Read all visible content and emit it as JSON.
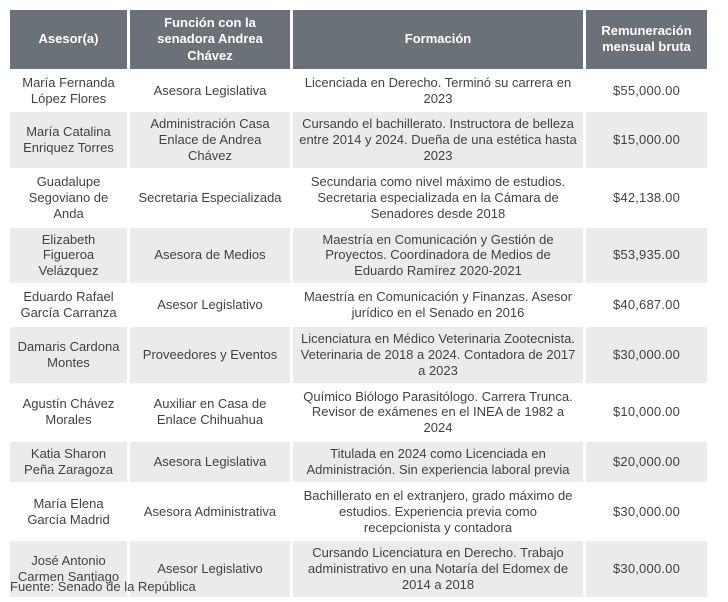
{
  "chart_data": {
    "type": "table",
    "title": "",
    "columns": [
      "Asesor(a)",
      "Función con la senadora Andrea Chávez",
      "Formación",
      "Remuneración mensual bruta"
    ],
    "rows": [
      {
        "asesor": "María Fernanda López Flores",
        "funcion": "Asesora Legislativa",
        "formacion": "Licenciada en Derecho. Terminó su carrera en 2023",
        "remuneracion": "$55,000.00"
      },
      {
        "asesor": "María Catalina Enriquez Torres",
        "funcion": "Administración Casa Enlace de Andrea Chávez",
        "formacion": "Cursando el bachillerato. Instructora de belleza entre 2014 y 2024. Dueña de una estética hasta 2023",
        "remuneracion": "$15,000.00"
      },
      {
        "asesor": "Guadalupe Segoviano de Anda",
        "funcion": "Secretaria Especializada",
        "formacion": "Secundaria como nivel máximo de estudios. Secretaria especializada en la Cámara de Senadores desde 2018",
        "remuneracion": "$42,138.00"
      },
      {
        "asesor": "Elizabeth Figueroa Velázquez",
        "funcion": "Asesora de Medios",
        "formacion": "Maestría en Comunicación y Gestión de Proyectos. Coordinadora de Medios de Eduardo Ramírez 2020-2021",
        "remuneracion": "$53,935.00"
      },
      {
        "asesor": "Eduardo Rafael García Carranza",
        "funcion": "Asesor Legislativo",
        "formacion": "Maestría en Comunicación y Finanzas. Asesor jurídico en el Senado en 2016",
        "remuneracion": "$40,687.00"
      },
      {
        "asesor": "Damaris Cardona Montes",
        "funcion": "Proveedores y Eventos",
        "formacion": "Licenciatura en Médico Veterinaria Zootecnista. Veterinaria de 2018 a 2024. Contadora de 2017 a 2023",
        "remuneracion": "$30,000.00"
      },
      {
        "asesor": "Agustín Chávez Morales",
        "funcion": "Auxiliar en Casa de Enlace Chihuahua",
        "formacion": "Químico Biólogo Parasitólogo. Carrera Trunca. Revisor de exámenes en el INEA de 1982 a 2024",
        "remuneracion": "$10,000.00"
      },
      {
        "asesor": "Katia Sharon Peña Zaragoza",
        "funcion": "Asesora Legislativa",
        "formacion": "Titulada en 2024 como Licenciada en Administración. Sin experiencia laboral previa",
        "remuneracion": "$20,000.00"
      },
      {
        "asesor": "María Elena García Madrid",
        "funcion": "Asesora Administrativa",
        "formacion": "Bachillerato en el extranjero, grado máximo de estudios. Experiencia previa como recepcionista y contadora",
        "remuneracion": "$30,000.00"
      },
      {
        "asesor": "José Antonio Carmen Santiago",
        "funcion": "Asesor Legislativo",
        "formacion": "Cursando Licenciatura en Derecho. Trabajo administrativo en una Notaría del Edomex de 2014 a 2018",
        "remuneracion": "$30,000.00"
      }
    ]
  },
  "footer": {
    "source": "Fuente: Senado de la República"
  },
  "colors": {
    "header_bg": "#6b7178",
    "header_text": "#ffffff",
    "row_alt_bg": "#ebebeb",
    "text": "#3f4245"
  }
}
